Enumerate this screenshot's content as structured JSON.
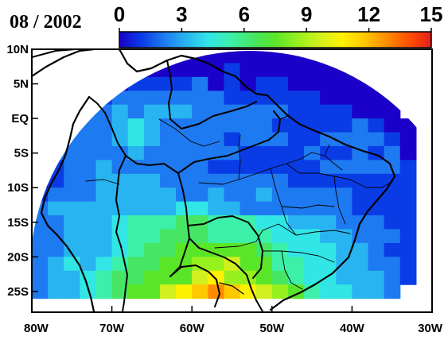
{
  "title": "08 / 2002",
  "colorbar": {
    "ticks": [
      "0",
      "3",
      "6",
      "9",
      "12",
      "15"
    ],
    "min": 0,
    "max": 15,
    "colors": [
      "#1a00c8",
      "#0a3ce6",
      "#1e7af0",
      "#28b4f0",
      "#32e6e6",
      "#3cf0aa",
      "#46e664",
      "#5ae628",
      "#96f01e",
      "#d2f01e",
      "#fff000",
      "#ffc800",
      "#ff8c00",
      "#ff5000",
      "#e61e1e"
    ]
  },
  "lat_labels": [
    "10N",
    "5N",
    "EQ",
    "5S",
    "10S",
    "15S",
    "20S",
    "25S"
  ],
  "lon_labels": [
    "80W",
    "70W",
    "60W",
    "50W",
    "40W",
    "30W"
  ],
  "chart_data": {
    "type": "heatmap",
    "title": "08 / 2002",
    "x_axis": {
      "range": [
        -80,
        -30
      ],
      "ticks": [
        "80W",
        "70W",
        "60W",
        "50W",
        "40W",
        "30W"
      ]
    },
    "y_axis": {
      "range": [
        -28,
        10
      ],
      "ticks": [
        "10N",
        "5N",
        "EQ",
        "5S",
        "10S",
        "15S",
        "20S",
        "25S"
      ]
    },
    "colorscale_range": [
      0,
      15
    ],
    "cell_size_deg": [
      2,
      2
    ],
    "grid_origin_lon": -80,
    "grid_origin_lat": 10,
    "rows": [
      "....00000000000000000.....",
      "..00000000001000000000....",
      ".0000011112010110000000...",
      "00011222222211111100000...",
      "00222323332222221111000...",
      "001223432222222111112100..",
      "012223432222122211222210..",
      "022222322222211112112120..",
      "012232222221111111222221..",
      "012233332222222211111111..",
      "122233333223223222221111..",
      "233333333443322222221111..",
      "223334555665554433322211..",
      "223334556665555444332221..",
      "223334566788876544433211..",
      "234345667899a87554433221..",
      "2334566788ab998654433321..",
      "23345678abcdcba97544332..."
    ]
  }
}
